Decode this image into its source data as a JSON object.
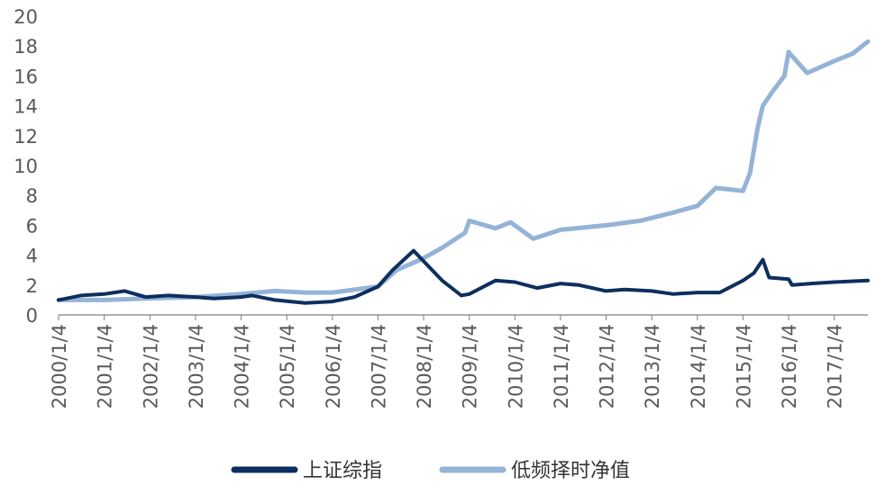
{
  "chart_data": {
    "type": "line",
    "title": "",
    "xlabel": "",
    "ylabel": "",
    "ylim": [
      0,
      20
    ],
    "yticks": [
      0,
      2,
      4,
      6,
      8,
      10,
      12,
      14,
      16,
      18,
      20
    ],
    "xlim": [
      "2000-01-04",
      "2017-09-30"
    ],
    "xticks": [
      "2000/1/4",
      "2001/1/4",
      "2002/1/4",
      "2003/1/4",
      "2004/1/4",
      "2005/1/4",
      "2006/1/4",
      "2007/1/4",
      "2008/1/4",
      "2009/1/4",
      "2010/1/4",
      "2011/1/4",
      "2012/1/4",
      "2013/1/4",
      "2014/1/4",
      "2015/1/4",
      "2016/1/4",
      "2017/1/4"
    ],
    "grid": false,
    "legend_position": "bottom",
    "series": [
      {
        "name": "上证综指",
        "color": "#0d2f5e",
        "x": [
          "2000-01-04",
          "2000-07-01",
          "2001-01-04",
          "2001-06-15",
          "2001-12-01",
          "2002-06-01",
          "2003-01-04",
          "2003-06-01",
          "2004-01-04",
          "2004-04-01",
          "2004-10-01",
          "2005-06-01",
          "2006-01-04",
          "2006-07-01",
          "2007-01-04",
          "2007-05-01",
          "2007-10-16",
          "2008-01-04",
          "2008-06-01",
          "2008-11-01",
          "2009-01-04",
          "2009-08-01",
          "2010-01-04",
          "2010-07-01",
          "2011-01-04",
          "2011-06-01",
          "2012-01-04",
          "2012-06-01",
          "2013-01-04",
          "2013-06-25",
          "2014-01-04",
          "2014-07-01",
          "2015-01-04",
          "2015-04-01",
          "2015-06-12",
          "2015-08-01",
          "2016-01-04",
          "2016-02-01",
          "2016-07-01",
          "2017-01-04",
          "2017-09-30"
        ],
        "values": [
          1.0,
          1.3,
          1.4,
          1.6,
          1.2,
          1.3,
          1.2,
          1.1,
          1.2,
          1.3,
          1.0,
          0.8,
          0.9,
          1.2,
          1.9,
          3.0,
          4.3,
          3.6,
          2.3,
          1.3,
          1.4,
          2.3,
          2.2,
          1.8,
          2.1,
          2.0,
          1.6,
          1.7,
          1.6,
          1.4,
          1.5,
          1.5,
          2.3,
          2.8,
          3.7,
          2.5,
          2.4,
          2.0,
          2.1,
          2.2,
          2.3
        ]
      },
      {
        "name": "低频择时净值",
        "color": "#95b3d7",
        "x": [
          "2000-01-04",
          "2001-01-04",
          "2001-12-01",
          "2003-01-04",
          "2004-01-04",
          "2004-10-01",
          "2005-06-01",
          "2006-01-04",
          "2007-01-04",
          "2007-06-01",
          "2007-10-16",
          "2008-01-04",
          "2008-06-01",
          "2008-12-01",
          "2009-01-04",
          "2009-08-01",
          "2009-12-01",
          "2010-06-01",
          "2011-01-04",
          "2012-01-04",
          "2012-10-01",
          "2013-06-01",
          "2014-01-04",
          "2014-06-01",
          "2015-01-04",
          "2015-03-01",
          "2015-05-01",
          "2015-06-12",
          "2015-09-01",
          "2015-12-01",
          "2016-01-04",
          "2016-06-01",
          "2017-01-04",
          "2017-06-01",
          "2017-09-30"
        ],
        "values": [
          1.0,
          1.0,
          1.1,
          1.2,
          1.4,
          1.6,
          1.5,
          1.5,
          1.9,
          3.0,
          3.5,
          3.8,
          4.5,
          5.5,
          6.3,
          5.8,
          6.2,
          5.1,
          5.7,
          6.0,
          6.3,
          6.8,
          7.3,
          8.5,
          8.3,
          9.5,
          12.5,
          14.0,
          15.0,
          16.0,
          17.6,
          16.2,
          17.0,
          17.5,
          18.3
        ]
      }
    ]
  }
}
